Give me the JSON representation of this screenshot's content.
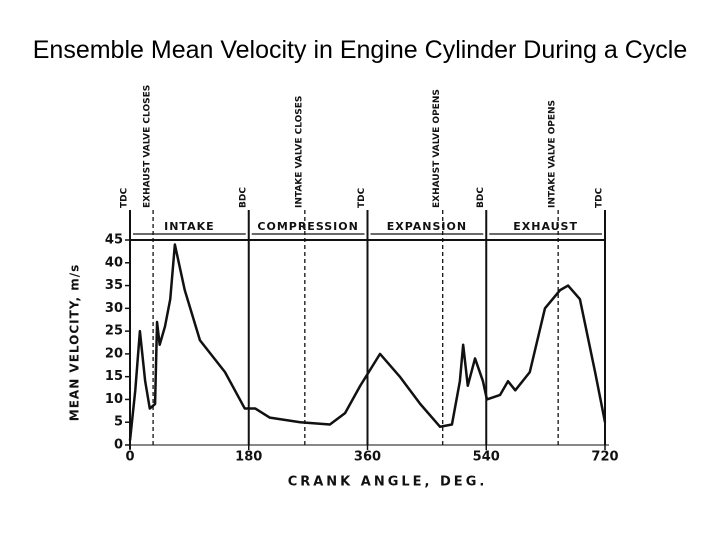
{
  "chart_data": {
    "type": "line",
    "title": "Ensemble Mean Velocity in Engine Cylinder During a Cycle",
    "x_label": "CRANK ANGLE, DEG.",
    "y_label": "MEAN VELOCITY, m/s",
    "xlim": [
      0,
      720
    ],
    "xticks": [
      0,
      180,
      360,
      540,
      720
    ],
    "ylim": [
      0,
      45
    ],
    "yticks": [
      0,
      5,
      10,
      15,
      20,
      25,
      30,
      35,
      40,
      45
    ],
    "color": "#111111",
    "x": [
      0,
      8,
      15,
      23,
      30,
      38,
      41,
      45,
      53,
      61,
      68,
      83,
      106,
      144,
      174,
      190,
      212,
      258,
      303,
      326,
      349,
      379,
      409,
      440,
      470,
      488,
      500,
      505,
      512,
      523,
      535,
      541,
      561,
      573,
      584,
      606,
      629,
      652,
      664,
      682,
      705,
      720
    ],
    "values": [
      1,
      12,
      25,
      14,
      8,
      9,
      27,
      22,
      26,
      32,
      44,
      34,
      23,
      16,
      8,
      8,
      6,
      5,
      4.5,
      7,
      13,
      20,
      15,
      9,
      4,
      4.5,
      14,
      22,
      13,
      19,
      14,
      10,
      11,
      14,
      12,
      16,
      30,
      34,
      35,
      32,
      16,
      5
    ],
    "events": [
      {
        "x": 0,
        "label": "TDC",
        "dashed": false
      },
      {
        "x": 35,
        "label": "EXHAUST VALVE CLOSES",
        "dashed": true
      },
      {
        "x": 180,
        "label": "BDC",
        "dashed": false
      },
      {
        "x": 265,
        "label": "INTAKE VALVE CLOSES",
        "dashed": true
      },
      {
        "x": 360,
        "label": "TDC",
        "dashed": false
      },
      {
        "x": 474,
        "label": "EXHAUST VALVE OPENS",
        "dashed": true
      },
      {
        "x": 540,
        "label": "BDC",
        "dashed": false
      },
      {
        "x": 649,
        "label": "INTAKE VALVE OPENS",
        "dashed": true
      },
      {
        "x": 720,
        "label": "TDC",
        "dashed": false
      }
    ],
    "phases": [
      {
        "label": "INTAKE",
        "start": 0,
        "end": 180
      },
      {
        "label": "COMPRESSION",
        "start": 180,
        "end": 360
      },
      {
        "label": "EXPANSION",
        "start": 360,
        "end": 540
      },
      {
        "label": "EXHAUST",
        "start": 540,
        "end": 720
      }
    ]
  }
}
